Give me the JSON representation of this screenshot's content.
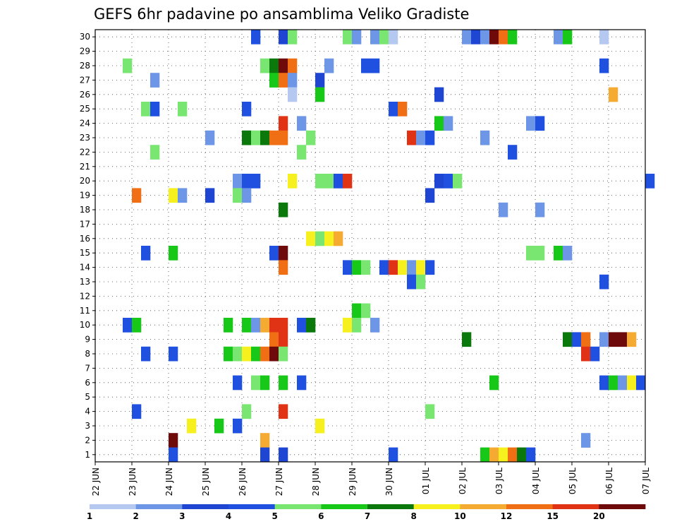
{
  "chart_data": {
    "type": "heatmap",
    "title": "GEFS 6hr padavine po ansamblima Veliko Gradiste",
    "xlabel": "",
    "ylabel": "",
    "x_ticks": [
      "22 JUN",
      "23 JUN",
      "24 JUN",
      "25 JUN",
      "26 JUN",
      "27 JUN",
      "28 JUN",
      "29 JUN",
      "30 JUN",
      "01 JUL",
      "02 JUL",
      "03 JUL",
      "04 JUL",
      "05 JUL",
      "06 JUL",
      "07 JUL"
    ],
    "x_range": [
      "22 JUN 00",
      "07 JUL 00"
    ],
    "x_step": "6hr",
    "y_ticks": [
      1,
      2,
      3,
      4,
      5,
      6,
      7,
      8,
      9,
      10,
      11,
      12,
      13,
      14,
      15,
      16,
      17,
      18,
      19,
      20,
      21,
      22,
      23,
      24,
      25,
      26,
      27,
      28,
      29,
      30
    ],
    "ylim": [
      0.5,
      30.5
    ],
    "grid": true,
    "legend": "colorbar-bottom",
    "colorbar": {
      "levels": [
        1,
        2,
        3,
        4,
        5,
        6,
        7,
        8,
        10,
        12,
        15,
        20
      ],
      "colors": [
        "#b4c8f0",
        "#6e96e6",
        "#1e46d2",
        "#2050e0",
        "#78e670",
        "#18c818",
        "#0a780a",
        "#f5f01e",
        "#f5aa32",
        "#f06e14",
        "#e03214",
        "#6e0a0a"
      ]
    },
    "cells": [
      {
        "member": 30,
        "x": [
          [
            "26 JUN 06",
            4
          ],
          [
            "27 JUN 00",
            3
          ],
          [
            "27 JUN 06",
            5
          ],
          [
            "28 JUN 18",
            5
          ],
          [
            "29 JUN 00",
            2
          ],
          [
            "29 JUN 12",
            2
          ],
          [
            "29 JUN 18",
            5
          ],
          [
            "30 JUN 00",
            1
          ],
          [
            "02 JUL 00",
            2
          ],
          [
            "02 JUL 06",
            3
          ],
          [
            "02 JUL 12",
            2
          ],
          [
            "02 JUL 18",
            20
          ],
          [
            "03 JUL 00",
            12
          ],
          [
            "03 JUL 06",
            6
          ],
          [
            "04 JUL 12",
            2
          ],
          [
            "04 JUL 18",
            6
          ],
          [
            "05 JUL 18",
            1
          ]
        ]
      },
      {
        "member": 28,
        "x": [
          [
            "22 JUN 18",
            5
          ],
          [
            "26 JUN 12",
            5
          ],
          [
            "26 JUN 18",
            7
          ],
          [
            "27 JUN 00",
            20
          ],
          [
            "27 JUN 06",
            12
          ],
          [
            "28 JUN 06",
            2
          ],
          [
            "29 JUN 06",
            4
          ],
          [
            "29 JUN 12",
            4
          ],
          [
            "05 JUL 18",
            4
          ]
        ]
      },
      {
        "member": 27,
        "x": [
          [
            "23 JUN 12",
            2
          ],
          [
            "26 JUN 18",
            6
          ],
          [
            "27 JUN 00",
            12
          ],
          [
            "27 JUN 06",
            2
          ],
          [
            "28 JUN 00",
            3
          ]
        ]
      },
      {
        "member": 26,
        "x": [
          [
            "27 JUN 06",
            1
          ],
          [
            "28 JUN 00",
            6
          ],
          [
            "01 JUL 06",
            3
          ],
          [
            "06 JUL 00",
            10
          ]
        ]
      },
      {
        "member": 25,
        "x": [
          [
            "23 JUN 06",
            5
          ],
          [
            "23 JUN 12",
            4
          ],
          [
            "24 JUN 06",
            5
          ],
          [
            "26 JUN 00",
            4
          ],
          [
            "30 JUN 00",
            4
          ],
          [
            "30 JUN 06",
            12
          ]
        ]
      },
      {
        "member": 24,
        "x": [
          [
            "27 JUN 00",
            15
          ],
          [
            "27 JUN 12",
            2
          ],
          [
            "01 JUL 06",
            6
          ],
          [
            "01 JUL 12",
            2
          ],
          [
            "03 JUL 18",
            2
          ],
          [
            "04 JUL 00",
            4
          ]
        ]
      },
      {
        "member": 23,
        "x": [
          [
            "25 JUN 00",
            2
          ],
          [
            "26 JUN 00",
            7
          ],
          [
            "26 JUN 06",
            5
          ],
          [
            "26 JUN 12",
            7
          ],
          [
            "26 JUN 18",
            12
          ],
          [
            "27 JUN 00",
            12
          ],
          [
            "27 JUN 18",
            5
          ],
          [
            "30 JUN 12",
            15
          ],
          [
            "30 JUN 18",
            2
          ],
          [
            "01 JUL 00",
            4
          ],
          [
            "02 JUL 12",
            2
          ]
        ]
      },
      {
        "member": 22,
        "x": [
          [
            "23 JUN 12",
            5
          ],
          [
            "27 JUN 12",
            5
          ],
          [
            "03 JUL 06",
            4
          ]
        ]
      },
      {
        "member": 20,
        "x": [
          [
            "25 JUN 18",
            2
          ],
          [
            "26 JUN 00",
            4
          ],
          [
            "26 JUN 06",
            4
          ],
          [
            "27 JUN 06",
            8
          ],
          [
            "28 JUN 00",
            5
          ],
          [
            "28 JUN 06",
            5
          ],
          [
            "28 JUN 12",
            4
          ],
          [
            "28 JUN 18",
            15
          ],
          [
            "01 JUL 06",
            3
          ],
          [
            "01 JUL 12",
            4
          ],
          [
            "01 JUL 18",
            5
          ],
          [
            "07 JUL 00",
            4
          ]
        ]
      },
      {
        "member": 19,
        "x": [
          [
            "23 JUN 00",
            12
          ],
          [
            "24 JUN 00",
            8
          ],
          [
            "24 JUN 06",
            2
          ],
          [
            "25 JUN 00",
            3
          ],
          [
            "25 JUN 18",
            5
          ],
          [
            "26 JUN 00",
            2
          ],
          [
            "01 JUL 00",
            3
          ]
        ]
      },
      {
        "member": 18,
        "x": [
          [
            "27 JUN 00",
            7
          ],
          [
            "03 JUL 00",
            2
          ],
          [
            "04 JUL 00",
            2
          ]
        ]
      },
      {
        "member": 16,
        "x": [
          [
            "27 JUN 18",
            8
          ],
          [
            "28 JUN 00",
            5
          ],
          [
            "28 JUN 06",
            8
          ],
          [
            "28 JUN 12",
            10
          ]
        ]
      },
      {
        "member": 15,
        "x": [
          [
            "23 JUN 06",
            4
          ],
          [
            "24 JUN 00",
            6
          ],
          [
            "26 JUN 18",
            4
          ],
          [
            "27 JUN 00",
            20
          ],
          [
            "03 JUL 18",
            5
          ],
          [
            "04 JUL 00",
            5
          ],
          [
            "04 JUL 12",
            6
          ],
          [
            "04 JUL 18",
            2
          ]
        ]
      },
      {
        "member": 14,
        "x": [
          [
            "27 JUN 00",
            12
          ],
          [
            "28 JUN 18",
            4
          ],
          [
            "29 JUN 00",
            6
          ],
          [
            "29 JUN 06",
            5
          ],
          [
            "29 JUN 18",
            4
          ],
          [
            "30 JUN 00",
            15
          ],
          [
            "30 JUN 06",
            8
          ],
          [
            "30 JUN 12",
            2
          ],
          [
            "30 JUN 18",
            8
          ],
          [
            "01 JUL 00",
            4
          ]
        ]
      },
      {
        "member": 13,
        "x": [
          [
            "30 JUN 12",
            4
          ],
          [
            "30 JUN 18",
            5
          ],
          [
            "05 JUL 18",
            4
          ]
        ]
      },
      {
        "member": 11,
        "x": [
          [
            "29 JUN 00",
            6
          ],
          [
            "29 JUN 06",
            5
          ]
        ]
      },
      {
        "member": 10,
        "x": [
          [
            "22 JUN 18",
            4
          ],
          [
            "23 JUN 00",
            6
          ],
          [
            "25 JUN 12",
            6
          ],
          [
            "26 JUN 00",
            6
          ],
          [
            "26 JUN 06",
            2
          ],
          [
            "26 JUN 12",
            10
          ],
          [
            "26 JUN 18",
            15
          ],
          [
            "27 JUN 00",
            15
          ],
          [
            "27 JUN 12",
            4
          ],
          [
            "27 JUN 18",
            7
          ],
          [
            "28 JUN 18",
            8
          ],
          [
            "29 JUN 00",
            5
          ],
          [
            "29 JUN 12",
            2
          ]
        ]
      },
      {
        "member": 9,
        "x": [
          [
            "26 JUN 18",
            12
          ],
          [
            "27 JUN 00",
            15
          ],
          [
            "02 JUL 00",
            7
          ],
          [
            "04 JUL 18",
            7
          ],
          [
            "05 JUL 00",
            4
          ],
          [
            "05 JUL 06",
            12
          ],
          [
            "05 JUL 18",
            2
          ],
          [
            "06 JUL 00",
            20
          ],
          [
            "06 JUL 06",
            20
          ],
          [
            "06 JUL 12",
            10
          ]
        ]
      },
      {
        "member": 8,
        "x": [
          [
            "23 JUN 06",
            4
          ],
          [
            "24 JUN 00",
            4
          ],
          [
            "25 JUN 12",
            6
          ],
          [
            "25 JUN 18",
            5
          ],
          [
            "26 JUN 00",
            8
          ],
          [
            "26 JUN 06",
            6
          ],
          [
            "26 JUN 12",
            12
          ],
          [
            "26 JUN 18",
            20
          ],
          [
            "27 JUN 00",
            5
          ],
          [
            "05 JUL 06",
            15
          ],
          [
            "05 JUL 12",
            4
          ]
        ]
      },
      {
        "member": 6,
        "x": [
          [
            "25 JUN 18",
            4
          ],
          [
            "26 JUN 06",
            5
          ],
          [
            "26 JUN 12",
            6
          ],
          [
            "27 JUN 00",
            6
          ],
          [
            "27 JUN 12",
            4
          ],
          [
            "02 JUL 18",
            6
          ],
          [
            "05 JUL 18",
            4
          ],
          [
            "06 JUL 00",
            6
          ],
          [
            "06 JUL 06",
            2
          ],
          [
            "06 JUL 12",
            8
          ],
          [
            "06 JUL 18",
            4
          ]
        ]
      },
      {
        "member": 4,
        "x": [
          [
            "23 JUN 00",
            4
          ],
          [
            "26 JUN 00",
            5
          ],
          [
            "27 JUN 00",
            15
          ],
          [
            "01 JUL 00",
            5
          ]
        ]
      },
      {
        "member": 3,
        "x": [
          [
            "24 JUN 12",
            8
          ],
          [
            "25 JUN 06",
            6
          ],
          [
            "25 JUN 18",
            4
          ],
          [
            "28 JUN 00",
            8
          ]
        ]
      },
      {
        "member": 2,
        "x": [
          [
            "24 JUN 00",
            20
          ],
          [
            "26 JUN 12",
            10
          ],
          [
            "05 JUL 06",
            2
          ]
        ]
      },
      {
        "member": 1,
        "x": [
          [
            "24 JUN 00",
            4
          ],
          [
            "26 JUN 12",
            3
          ],
          [
            "27 JUN 00",
            3
          ],
          [
            "30 JUN 00",
            4
          ],
          [
            "02 JUL 12",
            6
          ],
          [
            "02 JUL 18",
            10
          ],
          [
            "03 JUL 00",
            8
          ],
          [
            "03 JUL 06",
            12
          ],
          [
            "03 JUL 12",
            7
          ],
          [
            "03 JUL 18",
            4
          ]
        ]
      }
    ]
  }
}
